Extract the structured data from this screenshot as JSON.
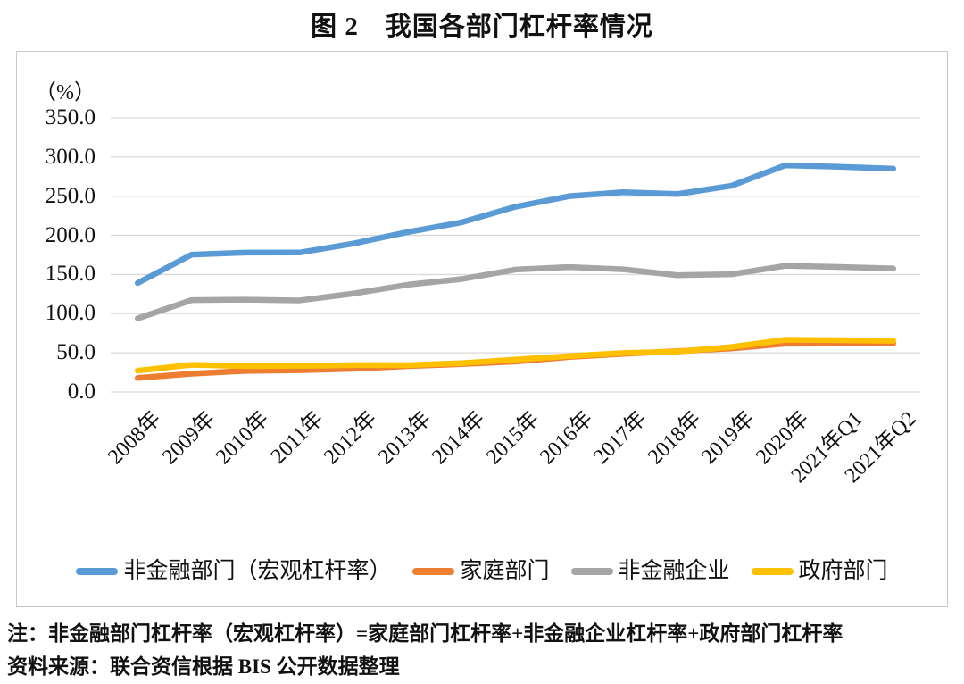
{
  "title": "图 2　我国各部门杠杆率情况",
  "notes": {
    "note_line": "注：非金融部门杠杆率（宏观杠杆率）=家庭部门杠杆率+非金融企业杠杆率+政府部门杠杆率",
    "source_line": "资料来源：联合资信根据 BIS 公开数据整理"
  },
  "chart_data": {
    "type": "line",
    "title": "图 2　我国各部门杠杆率情况",
    "unit_label": "（%）",
    "ylabel": "",
    "xlabel": "",
    "ylim": [
      0,
      350
    ],
    "y_step": 50,
    "y_tick_labels": [
      "350.0",
      "300.0",
      "250.0",
      "200.0",
      "150.0",
      "100.0",
      "50.0",
      "0.0"
    ],
    "grid": true,
    "gridline_color": "#d9d9d9",
    "legend_position": "bottom",
    "categories": [
      "2008年",
      "2009年",
      "2010年",
      "2011年",
      "2012年",
      "2013年",
      "2014年",
      "2015年",
      "2016年",
      "2017年",
      "2018年",
      "2019年",
      "2020年",
      "2021年Q1",
      "2021年Q2"
    ],
    "series": [
      {
        "name": "非金融部门（宏观杠杆率）",
        "color": "#5B9BD5",
        "values": [
          139.1,
          175.4,
          178.0,
          178.1,
          189.6,
          204.1,
          216.6,
          236.5,
          250.1,
          255.1,
          252.8,
          263.3,
          289.5,
          287.6,
          285.1
        ]
      },
      {
        "name": "家庭部门",
        "color": "#ED7D31",
        "values": [
          17.9,
          23.4,
          27.0,
          27.8,
          29.6,
          33.0,
          35.6,
          38.9,
          44.7,
          48.7,
          52.1,
          55.6,
          61.7,
          61.9,
          62.0
        ]
      },
      {
        "name": "非金融企业",
        "color": "#A5A5A5",
        "values": [
          93.9,
          117.3,
          117.9,
          116.9,
          125.7,
          136.9,
          144.2,
          156.3,
          159.5,
          156.6,
          149.1,
          150.3,
          161.1,
          159.6,
          157.7
        ]
      },
      {
        "name": "政府部门",
        "color": "#FFC000",
        "values": [
          27.3,
          34.7,
          33.1,
          33.4,
          34.3,
          34.2,
          36.8,
          41.3,
          45.9,
          49.8,
          51.6,
          57.4,
          66.7,
          66.1,
          65.4
        ]
      }
    ]
  }
}
